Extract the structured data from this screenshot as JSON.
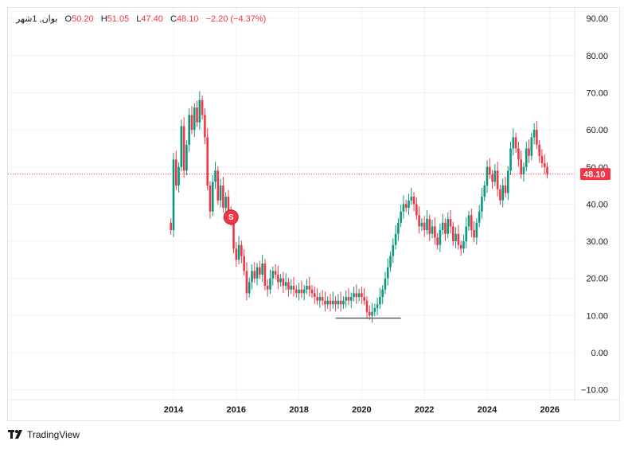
{
  "legend": {
    "symbol": "بوان, 1شهر",
    "open_label": "O",
    "open": "50.20",
    "high_label": "H",
    "high": "51.05",
    "low_label": "L",
    "low": "47.40",
    "close_label": "C",
    "close": "48.10",
    "change": "−2.20 (−4.37%)"
  },
  "price_tag": "48.10",
  "signal_marker": "S",
  "brand": "TradingView",
  "colors": {
    "up": "#089981",
    "down": "#f23645",
    "grid": "#f0f3fa",
    "axis_text": "#131722"
  },
  "chart_data": {
    "type": "candlestick",
    "timeframe": "1M",
    "y_ticks": [
      "90.00",
      "80.00",
      "70.00",
      "60.00",
      "50.00",
      "40.00",
      "30.00",
      "20.00",
      "10.00",
      "0.00",
      "−10.00"
    ],
    "x_ticks": [
      "2014",
      "2016",
      "2018",
      "2020",
      "2022",
      "2024",
      "2026"
    ],
    "ylim": [
      -13,
      93
    ],
    "last_price": 48.1,
    "signal": {
      "label": "S",
      "date": "2015-11",
      "price": 36.5
    },
    "support_line": {
      "price": 9.3,
      "from": "2019-03",
      "to": "2021-04"
    },
    "closes": [
      {
        "d": "2013-12",
        "v": 33
      },
      {
        "d": "2014-01",
        "v": 52
      },
      {
        "d": "2014-02",
        "v": 45
      },
      {
        "d": "2014-03",
        "v": 50
      },
      {
        "d": "2014-04",
        "v": 61
      },
      {
        "d": "2014-05",
        "v": 49
      },
      {
        "d": "2014-06",
        "v": 56
      },
      {
        "d": "2014-07",
        "v": 64
      },
      {
        "d": "2014-08",
        "v": 60
      },
      {
        "d": "2014-09",
        "v": 66
      },
      {
        "d": "2014-10",
        "v": 62
      },
      {
        "d": "2014-11",
        "v": 68
      },
      {
        "d": "2014-12",
        "v": 64
      },
      {
        "d": "2015-01",
        "v": 58
      },
      {
        "d": "2015-02",
        "v": 45
      },
      {
        "d": "2015-03",
        "v": 38
      },
      {
        "d": "2015-04",
        "v": 46
      },
      {
        "d": "2015-05",
        "v": 49
      },
      {
        "d": "2015-06",
        "v": 41
      },
      {
        "d": "2015-07",
        "v": 45
      },
      {
        "d": "2015-08",
        "v": 39
      },
      {
        "d": "2015-09",
        "v": 42
      },
      {
        "d": "2015-10",
        "v": 37
      },
      {
        "d": "2015-11",
        "v": 36
      },
      {
        "d": "2015-12",
        "v": 28
      },
      {
        "d": "2016-01",
        "v": 25
      },
      {
        "d": "2016-02",
        "v": 29
      },
      {
        "d": "2016-03",
        "v": 26
      },
      {
        "d": "2016-04",
        "v": 22
      },
      {
        "d": "2016-05",
        "v": 16
      },
      {
        "d": "2016-06",
        "v": 19
      },
      {
        "d": "2016-07",
        "v": 22
      },
      {
        "d": "2016-08",
        "v": 20
      },
      {
        "d": "2016-09",
        "v": 23
      },
      {
        "d": "2016-10",
        "v": 21
      },
      {
        "d": "2016-11",
        "v": 24
      },
      {
        "d": "2016-12",
        "v": 18
      },
      {
        "d": "2017-01",
        "v": 17
      },
      {
        "d": "2017-02",
        "v": 20
      },
      {
        "d": "2017-03",
        "v": 22
      },
      {
        "d": "2017-04",
        "v": 21
      },
      {
        "d": "2017-05",
        "v": 19
      },
      {
        "d": "2017-06",
        "v": 20
      },
      {
        "d": "2017-07",
        "v": 18
      },
      {
        "d": "2017-08",
        "v": 19
      },
      {
        "d": "2017-09",
        "v": 17
      },
      {
        "d": "2017-10",
        "v": 18
      },
      {
        "d": "2017-11",
        "v": 17
      },
      {
        "d": "2017-12",
        "v": 16
      },
      {
        "d": "2018-01",
        "v": 17
      },
      {
        "d": "2018-02",
        "v": 16
      },
      {
        "d": "2018-03",
        "v": 17
      },
      {
        "d": "2018-04",
        "v": 18
      },
      {
        "d": "2018-05",
        "v": 17
      },
      {
        "d": "2018-06",
        "v": 16
      },
      {
        "d": "2018-07",
        "v": 15
      },
      {
        "d": "2018-08",
        "v": 14
      },
      {
        "d": "2018-09",
        "v": 15
      },
      {
        "d": "2018-10",
        "v": 14
      },
      {
        "d": "2018-11",
        "v": 13
      },
      {
        "d": "2018-12",
        "v": 14
      },
      {
        "d": "2019-01",
        "v": 13
      },
      {
        "d": "2019-02",
        "v": 14
      },
      {
        "d": "2019-03",
        "v": 13
      },
      {
        "d": "2019-04",
        "v": 14
      },
      {
        "d": "2019-05",
        "v": 13
      },
      {
        "d": "2019-06",
        "v": 14
      },
      {
        "d": "2019-07",
        "v": 15
      },
      {
        "d": "2019-08",
        "v": 14
      },
      {
        "d": "2019-09",
        "v": 15
      },
      {
        "d": "2019-10",
        "v": 16
      },
      {
        "d": "2019-11",
        "v": 15
      },
      {
        "d": "2019-12",
        "v": 16
      },
      {
        "d": "2020-01",
        "v": 15
      },
      {
        "d": "2020-02",
        "v": 14
      },
      {
        "d": "2020-03",
        "v": 11
      },
      {
        "d": "2020-04",
        "v": 10
      },
      {
        "d": "2020-05",
        "v": 11
      },
      {
        "d": "2020-06",
        "v": 12
      },
      {
        "d": "2020-07",
        "v": 13
      },
      {
        "d": "2020-08",
        "v": 15
      },
      {
        "d": "2020-09",
        "v": 17
      },
      {
        "d": "2020-10",
        "v": 20
      },
      {
        "d": "2020-11",
        "v": 23
      },
      {
        "d": "2020-12",
        "v": 26
      },
      {
        "d": "2021-01",
        "v": 29
      },
      {
        "d": "2021-02",
        "v": 32
      },
      {
        "d": "2021-03",
        "v": 35
      },
      {
        "d": "2021-04",
        "v": 38
      },
      {
        "d": "2021-05",
        "v": 40
      },
      {
        "d": "2021-06",
        "v": 39
      },
      {
        "d": "2021-07",
        "v": 41
      },
      {
        "d": "2021-08",
        "v": 42
      },
      {
        "d": "2021-09",
        "v": 40
      },
      {
        "d": "2021-10",
        "v": 37
      },
      {
        "d": "2021-11",
        "v": 34
      },
      {
        "d": "2021-12",
        "v": 35
      },
      {
        "d": "2022-01",
        "v": 33
      },
      {
        "d": "2022-02",
        "v": 36
      },
      {
        "d": "2022-03",
        "v": 32
      },
      {
        "d": "2022-04",
        "v": 34
      },
      {
        "d": "2022-05",
        "v": 31
      },
      {
        "d": "2022-06",
        "v": 29
      },
      {
        "d": "2022-07",
        "v": 33
      },
      {
        "d": "2022-08",
        "v": 35
      },
      {
        "d": "2022-09",
        "v": 32
      },
      {
        "d": "2022-10",
        "v": 36
      },
      {
        "d": "2022-11",
        "v": 34
      },
      {
        "d": "2022-12",
        "v": 30
      },
      {
        "d": "2023-01",
        "v": 32
      },
      {
        "d": "2023-02",
        "v": 29
      },
      {
        "d": "2023-03",
        "v": 28
      },
      {
        "d": "2023-04",
        "v": 30
      },
      {
        "d": "2023-05",
        "v": 34
      },
      {
        "d": "2023-06",
        "v": 37
      },
      {
        "d": "2023-07",
        "v": 33
      },
      {
        "d": "2023-08",
        "v": 31
      },
      {
        "d": "2023-09",
        "v": 35
      },
      {
        "d": "2023-10",
        "v": 38
      },
      {
        "d": "2023-11",
        "v": 42
      },
      {
        "d": "2023-12",
        "v": 45
      },
      {
        "d": "2024-01",
        "v": 50
      },
      {
        "d": "2024-02",
        "v": 48
      },
      {
        "d": "2024-03",
        "v": 46
      },
      {
        "d": "2024-04",
        "v": 49
      },
      {
        "d": "2024-05",
        "v": 44
      },
      {
        "d": "2024-06",
        "v": 41
      },
      {
        "d": "2024-07",
        "v": 45
      },
      {
        "d": "2024-08",
        "v": 43
      },
      {
        "d": "2024-09",
        "v": 49
      },
      {
        "d": "2024-10",
        "v": 55
      },
      {
        "d": "2024-11",
        "v": 58
      },
      {
        "d": "2024-12",
        "v": 55
      },
      {
        "d": "2025-01",
        "v": 52
      },
      {
        "d": "2025-02",
        "v": 48
      },
      {
        "d": "2025-03",
        "v": 50
      },
      {
        "d": "2025-04",
        "v": 55
      },
      {
        "d": "2025-05",
        "v": 53
      },
      {
        "d": "2025-06",
        "v": 58
      },
      {
        "d": "2025-07",
        "v": 60
      },
      {
        "d": "2025-08",
        "v": 56
      },
      {
        "d": "2025-09",
        "v": 53
      },
      {
        "d": "2025-10",
        "v": 51
      },
      {
        "d": "2025-11",
        "v": 50
      },
      {
        "d": "2025-12",
        "v": 48.1
      }
    ]
  }
}
